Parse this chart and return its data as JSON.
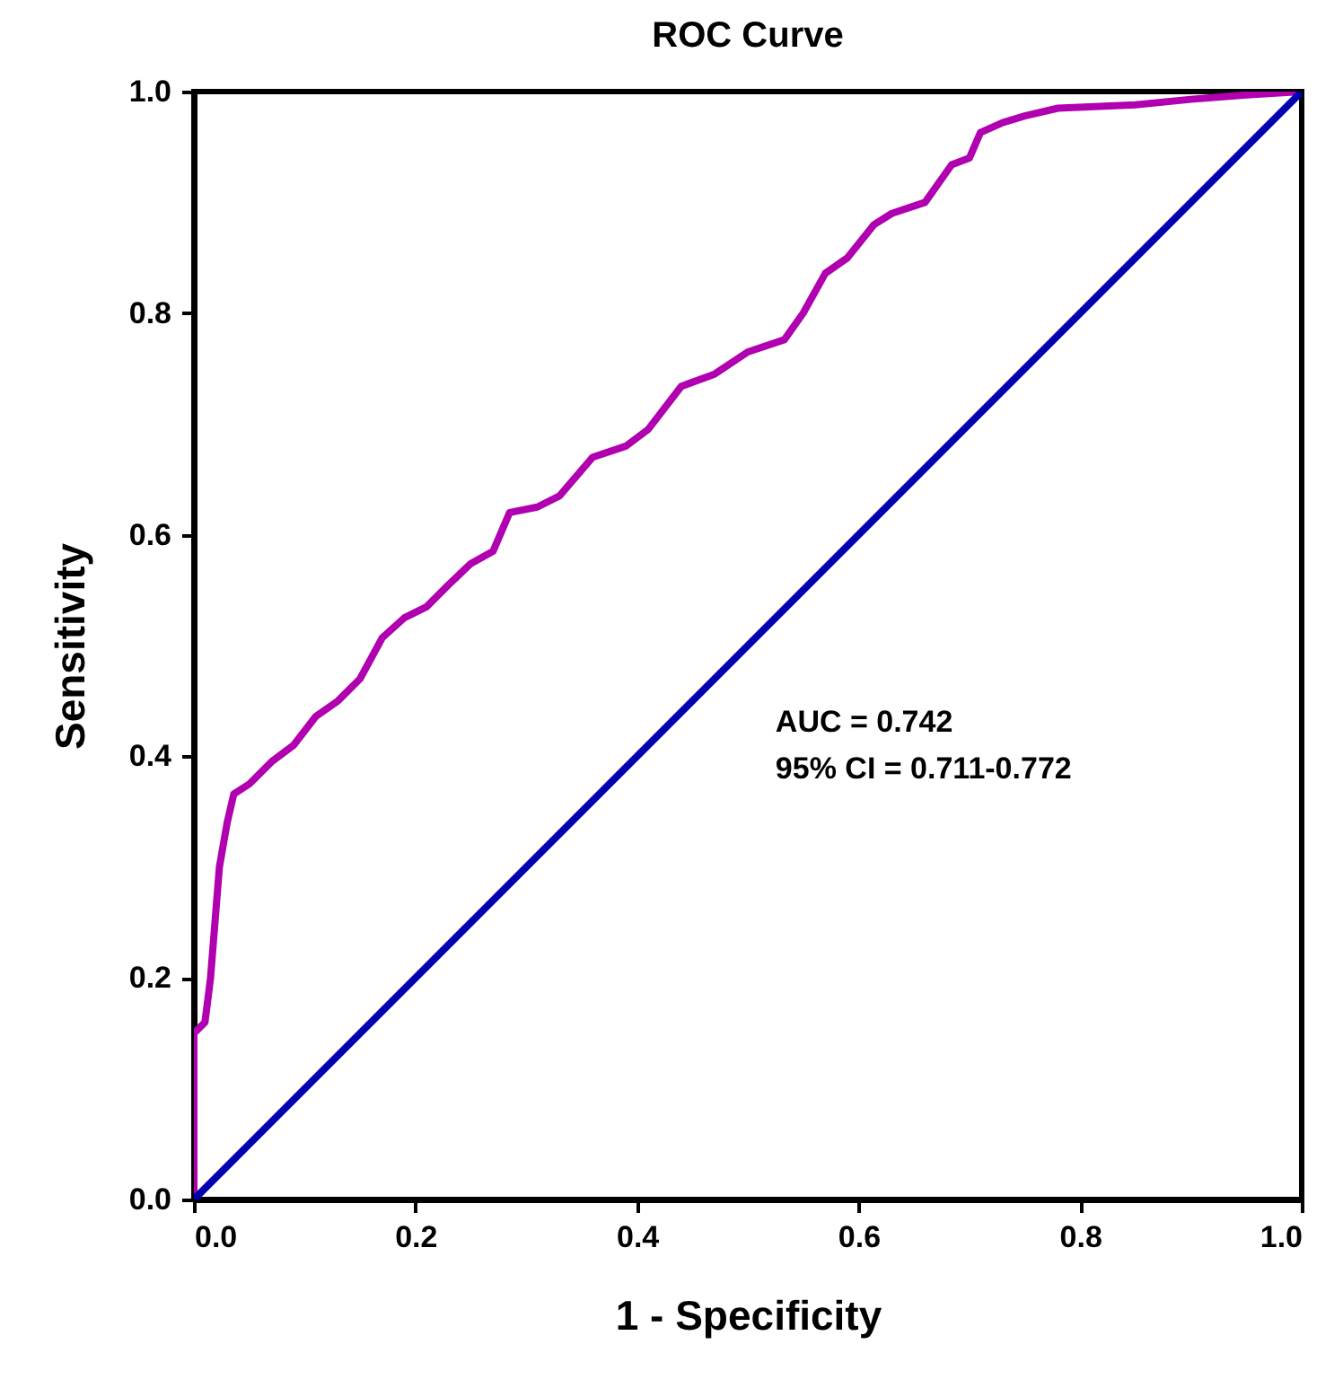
{
  "chart_data": {
    "type": "line",
    "title": "ROC Curve",
    "xlabel": "1 - Specificity",
    "ylabel": "Sensitivity",
    "series": [
      {
        "color": "#b000b0",
        "x": [
          0,
          0,
          0.01,
          0.015,
          0.023,
          0.03,
          0.036,
          0.05,
          0.07,
          0.09,
          0.11,
          0.13,
          0.15,
          0.17,
          0.19,
          0.21,
          0.23,
          0.25,
          0.27,
          0.285,
          0.31,
          0.33,
          0.36,
          0.39,
          0.41,
          0.44,
          0.47,
          0.5,
          0.533,
          0.55,
          0.57,
          0.59,
          0.614,
          0.63,
          0.66,
          0.684,
          0.7,
          0.71,
          0.73,
          0.75,
          0.78,
          0.85,
          0.9,
          0.95,
          1
        ],
        "values": [
          0,
          0.15,
          0.16,
          0.2,
          0.3,
          0.34,
          0.366,
          0.375,
          0.395,
          0.41,
          0.436,
          0.45,
          0.47,
          0.507,
          0.525,
          0.535,
          0.555,
          0.574,
          0.585,
          0.62,
          0.625,
          0.635,
          0.67,
          0.68,
          0.695,
          0.734,
          0.745,
          0.765,
          0.776,
          0.8,
          0.836,
          0.85,
          0.88,
          0.89,
          0.9,
          0.934,
          0.94,
          0.963,
          0.972,
          0.978,
          0.985,
          0.988,
          0.993,
          0.997,
          1
        ]
      },
      {
        "color": "#0000b0",
        "x": [
          0,
          1
        ],
        "values": [
          0,
          1
        ]
      }
    ],
    "xlim": [
      0,
      1
    ],
    "ylim": [
      0,
      1
    ],
    "xticks": [
      {
        "value": 0,
        "label": "0.0"
      },
      {
        "value": 0.2,
        "label": "0.2"
      },
      {
        "value": 0.4,
        "label": "0.4"
      },
      {
        "value": 0.6,
        "label": "0.6"
      },
      {
        "value": 0.8,
        "label": "0.8"
      },
      {
        "value": 1,
        "label": "1.0"
      }
    ],
    "yticks": [
      {
        "value": 0,
        "label": "0.0"
      },
      {
        "value": 0.2,
        "label": "0.2"
      },
      {
        "value": 0.4,
        "label": "0.4"
      },
      {
        "value": 0.6,
        "label": "0.6"
      },
      {
        "value": 0.8,
        "label": "0.8"
      },
      {
        "value": 1,
        "label": "1.0"
      }
    ],
    "grid": false,
    "marker": "none",
    "line_style": "solid",
    "annotations": [
      "AUC = 0.742",
      "95% CI = 0.711-0.772"
    ]
  }
}
